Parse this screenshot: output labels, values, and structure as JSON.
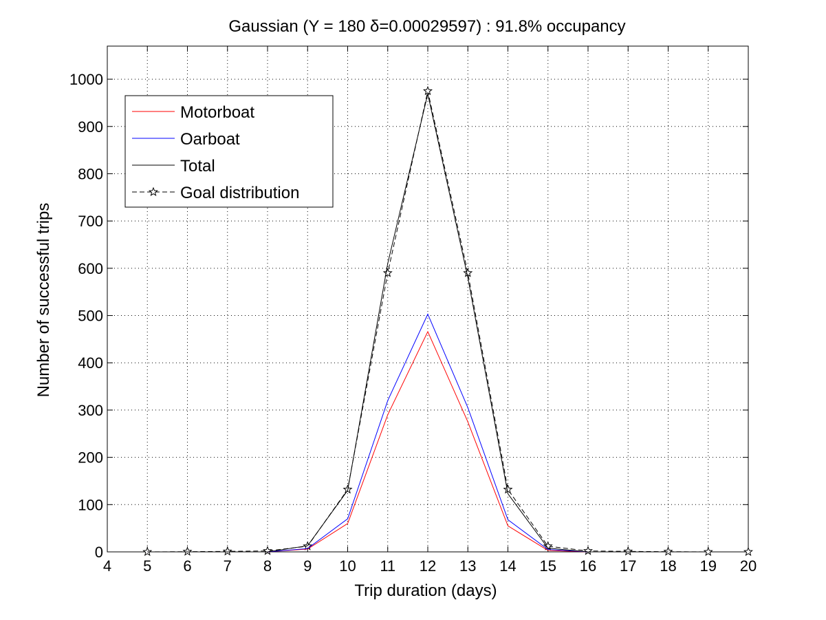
{
  "chart_data": {
    "type": "line",
    "title": "Gaussian (Y = 180 δ=0.00029597) : 91.8% occupancy",
    "xlabel": "Trip duration (days)",
    "ylabel": "Number of successful trips",
    "xlim": [
      4,
      20
    ],
    "ylim": [
      0,
      1070
    ],
    "xticks": [
      "4",
      "5",
      "6",
      "7",
      "8",
      "9",
      "10",
      "11",
      "12",
      "13",
      "14",
      "15",
      "16",
      "17",
      "18",
      "19",
      "20"
    ],
    "yticks": [
      "0",
      "100",
      "200",
      "300",
      "400",
      "500",
      "600",
      "700",
      "800",
      "900",
      "1000"
    ],
    "grid": true,
    "legend_position": "top-left",
    "series": [
      {
        "name": "Motorboat",
        "color": "#ff0000",
        "style": "solid",
        "x": [
          5,
          6,
          7,
          8,
          9,
          10,
          11,
          12,
          13,
          14,
          15,
          16,
          17,
          18
        ],
        "y": [
          0,
          0,
          0,
          0,
          6,
          60,
          290,
          466,
          275,
          55,
          3,
          0,
          0,
          0
        ]
      },
      {
        "name": "Oarboat",
        "color": "#0000ff",
        "style": "solid",
        "x": [
          5,
          6,
          7,
          8,
          9,
          10,
          11,
          12,
          13,
          14,
          15,
          16,
          17,
          18
        ],
        "y": [
          0,
          0,
          0,
          0,
          7,
          70,
          320,
          503,
          305,
          68,
          5,
          0,
          0,
          0
        ]
      },
      {
        "name": "Total",
        "color": "#000000",
        "style": "solid",
        "x": [
          5,
          6,
          7,
          8,
          9,
          10,
          11,
          12,
          13,
          14,
          15,
          16,
          17,
          18
        ],
        "y": [
          0,
          0,
          0,
          0,
          13,
          130,
          610,
          969,
          580,
          123,
          8,
          0,
          0,
          0
        ]
      },
      {
        "name": "Goal distribution",
        "color": "#000000",
        "style": "dashed",
        "marker": "star",
        "x": [
          5,
          6,
          7,
          8,
          9,
          10,
          11,
          12,
          13,
          14,
          15,
          16,
          17,
          18,
          19,
          20
        ],
        "y": [
          0,
          0.5,
          1,
          2,
          12,
          132,
          590,
          975,
          590,
          132,
          12,
          2,
          1,
          0.5,
          0,
          0
        ]
      }
    ]
  }
}
